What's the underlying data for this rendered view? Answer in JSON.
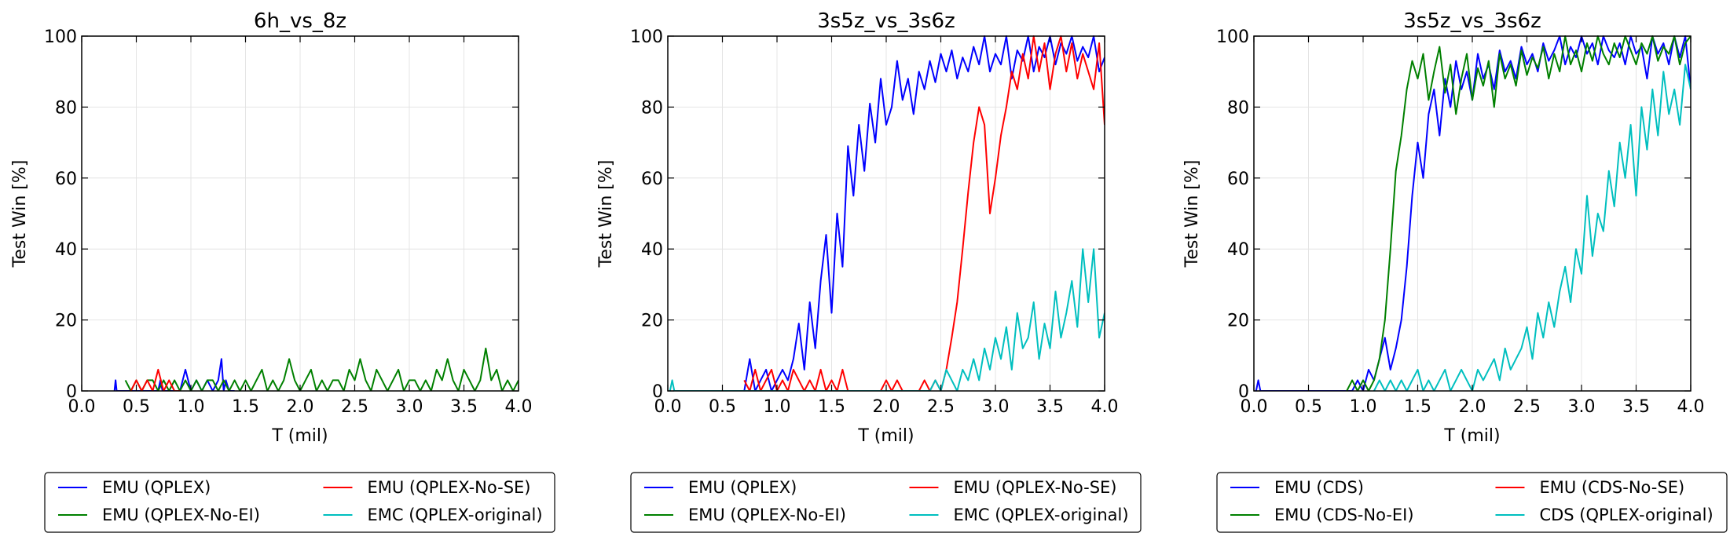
{
  "colors": {
    "blue": "#0000ff",
    "green": "#008000",
    "red": "#ff0000",
    "cyan": "#00bfbf"
  },
  "chart_data": [
    {
      "type": "line",
      "title": "6h_vs_8z",
      "xlabel": "T (mil)",
      "ylabel": "Test Win [%]",
      "xlim": [
        0,
        4.0
      ],
      "ylim": [
        0,
        100
      ],
      "xticks": [
        "0.0",
        "0.5",
        "1.0",
        "1.5",
        "2.0",
        "2.5",
        "3.0",
        "3.5",
        "4.0"
      ],
      "yticks": [
        "0",
        "20",
        "40",
        "60",
        "80",
        "100"
      ],
      "grid": true,
      "legend_position": "below",
      "series": [
        {
          "name": "EMU (QPLEX)",
          "color": "#0000ff",
          "x": [
            0.3,
            0.31,
            0.32,
            0.7,
            0.72,
            0.74,
            0.9,
            0.95,
            1.0,
            1.05,
            1.1,
            1.15,
            1.2,
            1.25,
            1.28,
            1.3,
            1.32,
            1.35,
            1.4
          ],
          "y": [
            0,
            3,
            0,
            0,
            3,
            0,
            0,
            6,
            0,
            3,
            0,
            3,
            0,
            3,
            9,
            0,
            3,
            0,
            0
          ]
        },
        {
          "name": "EMU (QPLEX-No-EI)",
          "color": "#008000",
          "x": [
            0.4,
            0.45,
            0.5,
            0.55,
            0.6,
            0.65,
            0.7,
            0.75,
            0.8,
            0.85,
            0.9,
            0.95,
            1.0,
            1.05,
            1.1,
            1.15,
            1.2,
            1.25,
            1.3,
            1.35,
            1.4,
            1.45,
            1.5,
            1.55,
            1.6,
            1.65,
            1.7,
            1.75,
            1.8,
            1.85,
            1.9,
            1.95,
            2.0,
            2.05,
            2.1,
            2.15,
            2.2,
            2.25,
            2.3,
            2.35,
            2.4,
            2.45,
            2.5,
            2.55,
            2.6,
            2.65,
            2.7,
            2.75,
            2.8,
            2.85,
            2.9,
            2.95,
            3.0,
            3.05,
            3.1,
            3.15,
            3.2,
            3.25,
            3.3,
            3.35,
            3.4,
            3.45,
            3.5,
            3.55,
            3.6,
            3.65,
            3.7,
            3.75,
            3.8,
            3.85,
            3.9,
            3.95,
            4.0
          ],
          "y": [
            3,
            0,
            3,
            0,
            3,
            3,
            0,
            3,
            0,
            3,
            0,
            3,
            0,
            3,
            0,
            3,
            3,
            0,
            3,
            0,
            3,
            0,
            3,
            0,
            3,
            6,
            0,
            3,
            0,
            3,
            9,
            3,
            0,
            3,
            6,
            0,
            3,
            0,
            3,
            3,
            0,
            6,
            3,
            9,
            3,
            0,
            6,
            3,
            0,
            3,
            6,
            0,
            3,
            3,
            0,
            3,
            0,
            6,
            3,
            9,
            3,
            0,
            6,
            3,
            0,
            3,
            12,
            3,
            6,
            0,
            3,
            0,
            3
          ]
        },
        {
          "name": "EMU (QPLEX-No-SE)",
          "color": "#ff0000",
          "x": [
            0.45,
            0.5,
            0.55,
            0.6,
            0.65,
            0.7,
            0.75,
            0.8,
            0.85,
            0.9
          ],
          "y": [
            0,
            3,
            0,
            3,
            0,
            6,
            0,
            3,
            0,
            0
          ]
        },
        {
          "name": "EMC (QPLEX-original)",
          "color": "#00bfbf",
          "x": [],
          "y": []
        }
      ]
    },
    {
      "type": "line",
      "title": "3s5z_vs_3s6z",
      "xlabel": "T (mil)",
      "ylabel": "Test Win [%]",
      "xlim": [
        0,
        4.0
      ],
      "ylim": [
        0,
        100
      ],
      "xticks": [
        "0.0",
        "0.5",
        "1.0",
        "1.5",
        "2.0",
        "2.5",
        "3.0",
        "3.5",
        "4.0"
      ],
      "yticks": [
        "0",
        "20",
        "40",
        "60",
        "80",
        "100"
      ],
      "grid": true,
      "legend_position": "below",
      "series": [
        {
          "name": "EMU (QPLEX)",
          "color": "#0000ff",
          "x": [
            0.7,
            0.75,
            0.8,
            0.85,
            0.9,
            0.95,
            1.0,
            1.05,
            1.1,
            1.15,
            1.2,
            1.25,
            1.3,
            1.35,
            1.4,
            1.45,
            1.5,
            1.55,
            1.6,
            1.65,
            1.7,
            1.75,
            1.8,
            1.85,
            1.9,
            1.95,
            2.0,
            2.05,
            2.1,
            2.15,
            2.2,
            2.25,
            2.3,
            2.35,
            2.4,
            2.45,
            2.5,
            2.55,
            2.6,
            2.65,
            2.7,
            2.75,
            2.8,
            2.85,
            2.9,
            2.95,
            3.0,
            3.05,
            3.1,
            3.15,
            3.2,
            3.25,
            3.3,
            3.35,
            3.4,
            3.45,
            3.5,
            3.55,
            3.6,
            3.65,
            3.7,
            3.75,
            3.8,
            3.85,
            3.9,
            3.95,
            4.0
          ],
          "y": [
            0,
            9,
            0,
            3,
            6,
            0,
            3,
            6,
            3,
            9,
            19,
            6,
            25,
            12,
            31,
            44,
            22,
            50,
            35,
            69,
            55,
            75,
            62,
            81,
            70,
            88,
            75,
            80,
            93,
            82,
            88,
            78,
            90,
            85,
            93,
            87,
            95,
            90,
            96,
            88,
            94,
            90,
            97,
            92,
            100,
            90,
            95,
            92,
            100,
            88,
            96,
            93,
            100,
            90,
            97,
            94,
            100,
            92,
            98,
            95,
            100,
            93,
            97,
            94,
            100,
            90,
            94
          ]
        },
        {
          "name": "EMU (QPLEX-No-EI)",
          "color": "#008000",
          "x": [],
          "y": []
        },
        {
          "name": "EMU (QPLEX-No-SE)",
          "color": "#ff0000",
          "x": [
            0.7,
            0.75,
            0.8,
            0.85,
            0.9,
            0.95,
            1.0,
            1.05,
            1.1,
            1.15,
            1.2,
            1.25,
            1.3,
            1.35,
            1.4,
            1.45,
            1.5,
            1.55,
            1.6,
            1.65,
            1.95,
            2.0,
            2.05,
            2.1,
            2.15,
            2.2,
            2.3,
            2.35,
            2.4,
            2.45,
            2.5,
            2.55,
            2.6,
            2.65,
            2.7,
            2.75,
            2.8,
            2.85,
            2.9,
            2.95,
            3.0,
            3.05,
            3.1,
            3.15,
            3.2,
            3.25,
            3.3,
            3.35,
            3.4,
            3.45,
            3.5,
            3.55,
            3.6,
            3.65,
            3.7,
            3.75,
            3.8,
            3.85,
            3.9,
            3.95,
            4.0
          ],
          "y": [
            3,
            0,
            6,
            0,
            3,
            6,
            0,
            3,
            0,
            6,
            3,
            0,
            3,
            0,
            6,
            0,
            3,
            0,
            6,
            0,
            0,
            3,
            0,
            3,
            0,
            0,
            0,
            3,
            0,
            3,
            0,
            6,
            15,
            25,
            40,
            56,
            70,
            80,
            75,
            50,
            60,
            72,
            80,
            90,
            85,
            95,
            88,
            100,
            90,
            98,
            85,
            95,
            100,
            90,
            98,
            88,
            95,
            90,
            85,
            98,
            75
          ]
        },
        {
          "name": "EMC (QPLEX-original)",
          "color": "#00bfbf",
          "x": [
            0.02,
            0.04,
            0.06,
            2.4,
            2.45,
            2.5,
            2.55,
            2.6,
            2.65,
            2.7,
            2.75,
            2.8,
            2.85,
            2.9,
            2.95,
            3.0,
            3.05,
            3.1,
            3.15,
            3.2,
            3.25,
            3.3,
            3.35,
            3.4,
            3.45,
            3.5,
            3.55,
            3.6,
            3.65,
            3.7,
            3.75,
            3.8,
            3.85,
            3.9,
            3.95,
            4.0
          ],
          "y": [
            0,
            3,
            0,
            0,
            3,
            0,
            6,
            3,
            0,
            6,
            3,
            9,
            3,
            12,
            6,
            15,
            9,
            18,
            6,
            22,
            12,
            15,
            25,
            9,
            19,
            12,
            28,
            15,
            22,
            31,
            18,
            40,
            25,
            40,
            15,
            22
          ]
        }
      ]
    },
    {
      "type": "line",
      "title": "3s5z_vs_3s6z",
      "xlabel": "T (mil)",
      "ylabel": "Test Win [%]",
      "xlim": [
        0,
        4.0
      ],
      "ylim": [
        0,
        100
      ],
      "xticks": [
        "0.0",
        "0.5",
        "1.0",
        "1.5",
        "2.0",
        "2.5",
        "3.0",
        "3.5",
        "4.0"
      ],
      "yticks": [
        "0",
        "20",
        "40",
        "60",
        "80",
        "100"
      ],
      "grid": true,
      "legend_position": "below",
      "series": [
        {
          "name": "EMU (CDS)",
          "color": "#0000ff",
          "x": [
            0.02,
            0.04,
            0.06,
            0.9,
            0.95,
            1.0,
            1.05,
            1.1,
            1.15,
            1.2,
            1.25,
            1.3,
            1.35,
            1.4,
            1.45,
            1.5,
            1.55,
            1.6,
            1.65,
            1.7,
            1.75,
            1.8,
            1.85,
            1.9,
            1.95,
            2.0,
            2.05,
            2.1,
            2.15,
            2.2,
            2.25,
            2.3,
            2.35,
            2.4,
            2.45,
            2.5,
            2.55,
            2.6,
            2.65,
            2.7,
            2.75,
            2.8,
            2.85,
            2.9,
            2.95,
            3.0,
            3.05,
            3.1,
            3.15,
            3.2,
            3.25,
            3.3,
            3.35,
            3.4,
            3.45,
            3.5,
            3.55,
            3.6,
            3.65,
            3.7,
            3.75,
            3.8,
            3.85,
            3.9,
            3.95,
            4.0
          ],
          "y": [
            0,
            3,
            0,
            0,
            3,
            0,
            6,
            3,
            9,
            15,
            6,
            12,
            20,
            35,
            55,
            70,
            60,
            78,
            85,
            72,
            88,
            80,
            93,
            85,
            90,
            82,
            95,
            88,
            92,
            85,
            96,
            90,
            93,
            88,
            97,
            92,
            95,
            90,
            98,
            93,
            96,
            100,
            92,
            97,
            94,
            100,
            95,
            98,
            92,
            100,
            96,
            94,
            98,
            92,
            100,
            95,
            97,
            88,
            100,
            95,
            98,
            92,
            100,
            94,
            100,
            85
          ]
        },
        {
          "name": "EMU (CDS-No-EI)",
          "color": "#008000",
          "x": [
            0.85,
            0.9,
            0.95,
            1.0,
            1.05,
            1.1,
            1.15,
            1.2,
            1.25,
            1.3,
            1.35,
            1.4,
            1.45,
            1.5,
            1.55,
            1.6,
            1.65,
            1.7,
            1.75,
            1.8,
            1.85,
            1.9,
            1.95,
            2.0,
            2.05,
            2.1,
            2.15,
            2.2,
            2.25,
            2.3,
            2.35,
            2.4,
            2.45,
            2.5,
            2.55,
            2.6,
            2.65,
            2.7,
            2.75,
            2.8,
            2.85,
            2.9,
            2.95,
            3.0,
            3.05,
            3.1,
            3.15,
            3.2,
            3.25,
            3.3,
            3.35,
            3.4,
            3.45,
            3.5,
            3.55,
            3.6,
            3.65,
            3.7,
            3.75,
            3.8,
            3.85,
            3.9,
            3.95,
            4.0
          ],
          "y": [
            0,
            3,
            0,
            3,
            0,
            3,
            9,
            20,
            40,
            62,
            72,
            85,
            93,
            88,
            95,
            82,
            90,
            97,
            84,
            92,
            78,
            88,
            95,
            82,
            91,
            86,
            93,
            80,
            95,
            88,
            92,
            86,
            96,
            89,
            94,
            91,
            97,
            88,
            95,
            90,
            100,
            92,
            96,
            90,
            98,
            93,
            100,
            95,
            92,
            98,
            94,
            100,
            96,
            92,
            98,
            95,
            100,
            93,
            97,
            95,
            100,
            92,
            98,
            100
          ]
        },
        {
          "name": "EMU (CDS-No-SE)",
          "color": "#ff0000",
          "x": [],
          "y": []
        },
        {
          "name": "CDS (QPLEX-original)",
          "color": "#00bfbf",
          "x": [
            1.1,
            1.15,
            1.2,
            1.25,
            1.3,
            1.35,
            1.4,
            1.45,
            1.5,
            1.55,
            1.6,
            1.65,
            1.7,
            1.75,
            1.8,
            1.85,
            1.9,
            1.95,
            2.0,
            2.05,
            2.1,
            2.15,
            2.2,
            2.25,
            2.3,
            2.35,
            2.4,
            2.45,
            2.5,
            2.55,
            2.6,
            2.65,
            2.7,
            2.75,
            2.8,
            2.85,
            2.9,
            2.95,
            3.0,
            3.05,
            3.1,
            3.15,
            3.2,
            3.25,
            3.3,
            3.35,
            3.4,
            3.45,
            3.5,
            3.55,
            3.6,
            3.65,
            3.7,
            3.75,
            3.8,
            3.85,
            3.9,
            3.95,
            4.0
          ],
          "y": [
            0,
            3,
            0,
            3,
            0,
            3,
            0,
            3,
            6,
            0,
            3,
            0,
            3,
            6,
            0,
            3,
            6,
            3,
            0,
            6,
            3,
            6,
            9,
            3,
            12,
            6,
            9,
            12,
            18,
            9,
            22,
            15,
            25,
            18,
            28,
            35,
            25,
            40,
            33,
            55,
            38,
            50,
            45,
            62,
            52,
            70,
            60,
            75,
            55,
            80,
            68,
            85,
            72,
            90,
            78,
            85,
            75,
            92,
            85
          ]
        }
      ]
    }
  ]
}
